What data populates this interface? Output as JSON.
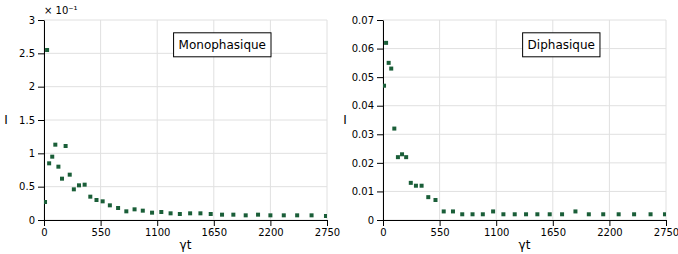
{
  "chart_data": [
    {
      "type": "scatter",
      "title": "Monophasique",
      "xlabel": "γt",
      "ylabel": "I",
      "annotations": [
        "× 10⁻¹"
      ],
      "x": [
        10,
        30,
        50,
        80,
        110,
        140,
        175,
        210,
        250,
        290,
        340,
        395,
        450,
        510,
        570,
        640,
        720,
        800,
        880,
        960,
        1050,
        1140,
        1230,
        1320,
        1420,
        1520,
        1620,
        1730,
        1840,
        1960,
        2080,
        2200,
        2330,
        2460,
        2600,
        2740
      ],
      "values": [
        0.27,
        2.55,
        0.85,
        0.95,
        1.13,
        0.8,
        0.62,
        1.11,
        0.68,
        0.46,
        0.52,
        0.53,
        0.35,
        0.3,
        0.28,
        0.22,
        0.18,
        0.13,
        0.16,
        0.14,
        0.11,
        0.12,
        0.1,
        0.09,
        0.1,
        0.1,
        0.09,
        0.08,
        0.08,
        0.07,
        0.08,
        0.07,
        0.07,
        0.07,
        0.07,
        0.06
      ],
      "color": "#1a5e38",
      "marker": "square",
      "xlim": [
        0,
        2750
      ],
      "ylim": [
        0,
        3.0
      ],
      "xticks": [
        0,
        550,
        1100,
        1650,
        2200,
        2750
      ],
      "yticks": [
        0,
        0.5,
        1,
        1.5,
        2,
        2.5,
        3
      ],
      "grid": true
    },
    {
      "type": "scatter",
      "title": "Diphasique",
      "xlabel": "γt",
      "ylabel": "I",
      "x": [
        10,
        30,
        55,
        80,
        110,
        145,
        185,
        225,
        270,
        320,
        375,
        440,
        510,
        590,
        680,
        770,
        870,
        970,
        1070,
        1170,
        1280,
        1390,
        1500,
        1620,
        1740,
        1870,
        2000,
        2140,
        2290,
        2440,
        2600,
        2740
      ],
      "values": [
        0.047,
        0.062,
        0.055,
        0.053,
        0.032,
        0.022,
        0.023,
        0.022,
        0.013,
        0.012,
        0.012,
        0.008,
        0.007,
        0.003,
        0.003,
        0.002,
        0.002,
        0.002,
        0.003,
        0.002,
        0.002,
        0.002,
        0.002,
        0.002,
        0.002,
        0.003,
        0.002,
        0.002,
        0.002,
        0.002,
        0.002,
        0.002
      ],
      "color": "#1a5e38",
      "marker": "square",
      "xlim": [
        0,
        2750
      ],
      "ylim": [
        0,
        0.07
      ],
      "xticks": [
        0,
        550,
        1100,
        1650,
        2200,
        2750
      ],
      "yticks": [
        0,
        0.01,
        0.02,
        0.03,
        0.04,
        0.05,
        0.06,
        0.07
      ],
      "grid": true
    }
  ]
}
